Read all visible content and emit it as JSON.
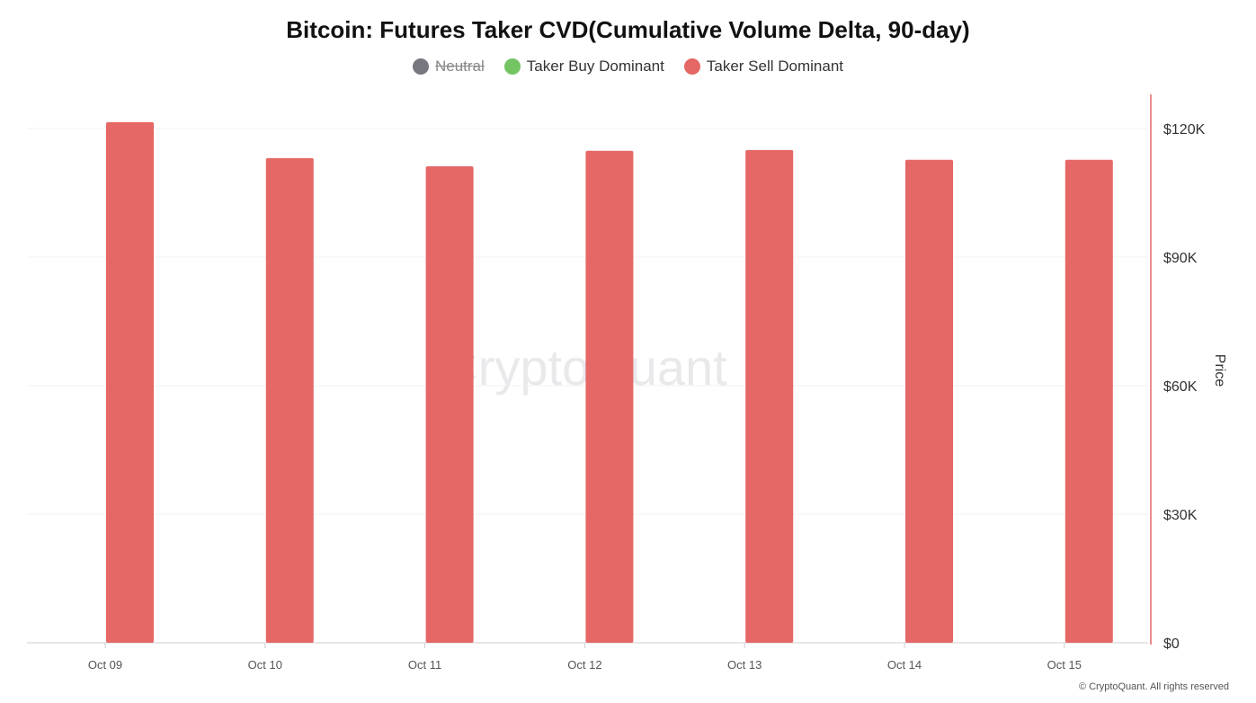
{
  "chart_data": {
    "type": "bar",
    "title": "Bitcoin: Futures Taker CVD(Cumulative Volume Delta, 90-day)",
    "legend": [
      {
        "name": "Neutral",
        "color": "#77777f",
        "hidden": true
      },
      {
        "name": "Taker Buy Dominant",
        "color": "#74c464",
        "hidden": false
      },
      {
        "name": "Taker Sell Dominant",
        "color": "#e56766",
        "hidden": false
      }
    ],
    "legend_placement": "top",
    "categories": [
      "Oct 09",
      "Oct 10",
      "Oct 11",
      "Oct 12",
      "Oct 13",
      "Oct 14",
      "Oct 15"
    ],
    "series": [
      {
        "name": "Taker Sell Dominant",
        "color": "#e56766",
        "values": [
          121500,
          113100,
          111200,
          114800,
          115000,
          112700,
          112700
        ]
      }
    ],
    "ylabel": "Price",
    "y_axis_side": "right",
    "ylim": [
      0,
      120000
    ],
    "yticks": [
      0,
      30000,
      60000,
      90000,
      120000
    ],
    "ytick_labels": [
      "$0",
      "$30K",
      "$60K",
      "$90K",
      "$120K"
    ],
    "grid": true,
    "watermark": "CryptoQuant"
  },
  "footer": "© CryptoQuant. All rights reserved"
}
